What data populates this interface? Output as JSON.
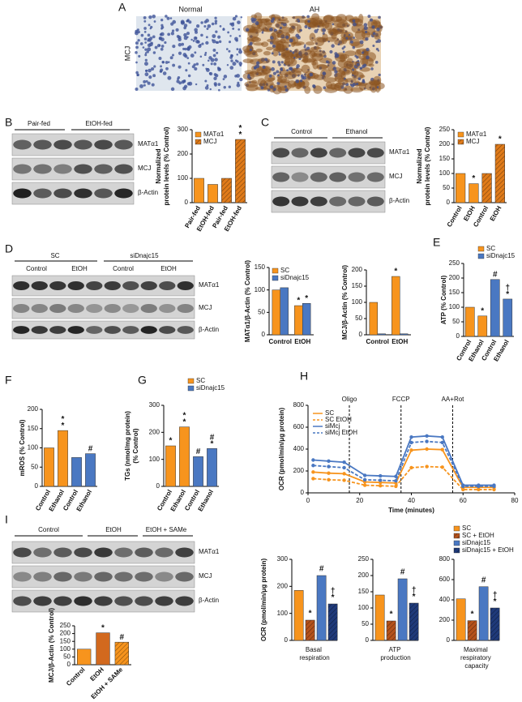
{
  "figure": {
    "panel_labels": [
      "A",
      "B",
      "C",
      "D",
      "E",
      "F",
      "G",
      "H",
      "I"
    ],
    "A": {
      "columns": [
        "Normal",
        "AH"
      ],
      "row": "MCJ"
    },
    "B": {
      "groups": [
        "Pair-fed",
        "EtOH-fed"
      ],
      "rows": [
        "MATα1",
        "MCJ",
        "β-Actin"
      ]
    },
    "C": {
      "groups": [
        "Control",
        "Ethanol"
      ],
      "rows": [
        "MATα1",
        "MCJ",
        "β-Actin"
      ]
    },
    "D": {
      "groups": [
        "SC",
        "siDnajc15"
      ],
      "lanes": [
        "Control",
        "EtOH",
        "Control",
        "EtOH"
      ],
      "rows": [
        "MATα1",
        "MCJ",
        "β-Actin"
      ]
    },
    "I": {
      "groups": [
        "Control",
        "EtOH",
        "EtOH + SAMe"
      ],
      "rows": [
        "MATα1",
        "MCJ",
        "β-Actin"
      ]
    }
  },
  "chart_data": [
    {
      "type": "bar",
      "ylabel": [
        "Normalized",
        "protein levels (% Control)"
      ],
      "categories": [
        "Pair-fed",
        "EtOH-fed",
        "Pair-fed",
        "EtOH-fed"
      ],
      "ylim": [
        0,
        300
      ],
      "yticks": [
        0,
        100,
        200,
        300
      ],
      "series": [
        {
          "name": "MATα1",
          "color": "#f7941d",
          "hatch": false,
          "values": [
            100,
            75,
            null,
            null
          ]
        },
        {
          "name": "MCJ",
          "color": "#e07b1a",
          "hatch": true,
          "values": [
            null,
            null,
            100,
            260
          ],
          "sig": [
            null,
            null,
            null,
            "**"
          ]
        }
      ]
    },
    {
      "type": "bar",
      "ylabel": [
        "Normalized",
        "protein levels (% Control)"
      ],
      "categories": [
        "Control",
        "EtOH",
        "Control",
        "EtOH"
      ],
      "ylim": [
        0,
        250
      ],
      "yticks": [
        0,
        50,
        100,
        150,
        200,
        250
      ],
      "series": [
        {
          "name": "MATα1",
          "color": "#f7941d",
          "hatch": false,
          "values": [
            100,
            65,
            null,
            null
          ],
          "sig": [
            null,
            "*",
            null,
            null
          ]
        },
        {
          "name": "MCJ",
          "color": "#e07b1a",
          "hatch": true,
          "values": [
            null,
            null,
            100,
            200
          ],
          "sig": [
            null,
            null,
            null,
            "*"
          ]
        }
      ]
    },
    {
      "type": "bar",
      "ylabel": [
        "MATα1/β-Actin (% Control)"
      ],
      "categories": [
        "Control",
        "EtOH"
      ],
      "ylim": [
        0,
        150
      ],
      "yticks": [
        0,
        50,
        100,
        150
      ],
      "series": [
        {
          "name": "SC",
          "color": "#f7941d",
          "values": [
            100,
            65
          ],
          "sig": [
            null,
            "*"
          ]
        },
        {
          "name": "siDnajc15",
          "color": "#4a78c2",
          "values": [
            105,
            70
          ],
          "sig": [
            null,
            "*"
          ]
        }
      ]
    },
    {
      "type": "bar",
      "ylabel": [
        "MCJ/β-Actin (% Control)"
      ],
      "categories": [
        "Control",
        "EtOH"
      ],
      "ylim": [
        0,
        200
      ],
      "yticks": [
        0,
        50,
        100,
        150,
        200
      ],
      "series": [
        {
          "color": "#f7941d",
          "values": [
            100,
            180
          ],
          "sig": [
            null,
            "*"
          ]
        },
        {
          "color": "#4a78c2",
          "values": [
            3,
            3
          ]
        }
      ]
    },
    {
      "type": "bar",
      "ylabel": [
        "ATP (% Control)"
      ],
      "categories": [
        "Control",
        "Ethanol",
        "Control",
        "Ethanol"
      ],
      "ylim": [
        0,
        250
      ],
      "yticks": [
        0,
        50,
        100,
        150,
        200,
        250
      ],
      "series": [
        {
          "name": "SC",
          "color": "#f7941d",
          "values": [
            100,
            70,
            null,
            null
          ],
          "sig": [
            null,
            "*",
            null,
            null
          ]
        },
        {
          "name": "siDnajc15",
          "color": "#4a78c2",
          "values": [
            null,
            null,
            195,
            128
          ],
          "sig": [
            null,
            null,
            "#",
            "†*"
          ]
        }
      ]
    },
    {
      "type": "bar",
      "ylabel": [
        "mROS (% Control)"
      ],
      "categories": [
        "Control",
        "Ethanol",
        "Control",
        "Ethanol"
      ],
      "ylim": [
        0,
        200
      ],
      "yticks": [
        0,
        50,
        100,
        150,
        200
      ],
      "series": [
        {
          "color": "#f7941d",
          "values": [
            100,
            145,
            null,
            null
          ],
          "sig": [
            null,
            "**",
            null,
            null
          ]
        },
        {
          "color": "#4a78c2",
          "values": [
            null,
            null,
            75,
            85
          ],
          "sig": [
            null,
            null,
            null,
            "#"
          ]
        }
      ]
    },
    {
      "type": "bar",
      "ylabel": [
        "TGs (nmol/mg protein)",
        "(% Control)"
      ],
      "categories": [
        "Control",
        "Ethanol",
        "Control",
        "Ethanol"
      ],
      "ylim": [
        0,
        300
      ],
      "yticks": [
        0,
        100,
        200,
        300
      ],
      "series": [
        {
          "name": "SC",
          "color": "#f7941d",
          "values": [
            150,
            220,
            null,
            null
          ],
          "sig": [
            "*",
            "**",
            null,
            null
          ]
        },
        {
          "name": "siDnajc15",
          "color": "#4a78c2",
          "values": [
            null,
            null,
            110,
            140
          ],
          "sig": [
            null,
            null,
            "#",
            "#*"
          ]
        }
      ]
    },
    {
      "type": "line",
      "ylabel": [
        "OCR (pmol/min/μg protein)"
      ],
      "xlabel": "Time (minutes)",
      "x": [
        2,
        8,
        14,
        22,
        28,
        34,
        40,
        46,
        52,
        60,
        66,
        72
      ],
      "xlim": [
        0,
        80
      ],
      "xticks": [
        0,
        20,
        40,
        60,
        80
      ],
      "ylim": [
        0,
        800
      ],
      "yticks": [
        0,
        200,
        400,
        600,
        800
      ],
      "events": [
        {
          "label": "Oligo",
          "x": 16
        },
        {
          "label": "FCCP",
          "x": 36
        },
        {
          "label": "AA+Rot",
          "x": 56
        }
      ],
      "series": [
        {
          "name": "SC",
          "color": "#f7941d",
          "dash": false,
          "values": [
            190,
            180,
            175,
            100,
            95,
            90,
            390,
            400,
            395,
            50,
            50,
            50
          ]
        },
        {
          "name": "SC EtOH",
          "color": "#f7941d",
          "dash": true,
          "values": [
            130,
            120,
            115,
            70,
            65,
            60,
            230,
            240,
            235,
            30,
            30,
            30
          ]
        },
        {
          "name": "siMcj",
          "color": "#4a78c2",
          "dash": false,
          "values": [
            300,
            290,
            280,
            160,
            155,
            150,
            510,
            520,
            510,
            70,
            70,
            70
          ]
        },
        {
          "name": "siMcj EtOH",
          "color": "#4a78c2",
          "dash": true,
          "values": [
            250,
            240,
            230,
            120,
            115,
            110,
            460,
            470,
            460,
            60,
            60,
            60
          ]
        }
      ]
    },
    {
      "type": "bar",
      "ylabel": [
        "MCJ/β-Actin (% Control)"
      ],
      "categories": [
        "Control",
        "EtOH",
        "EtOH + SAMe"
      ],
      "ylim": [
        0,
        250
      ],
      "yticks": [
        0,
        50,
        100,
        150,
        200,
        250
      ],
      "series": [
        {
          "colors": [
            "#f7941d",
            "#d2691e",
            "#f7941d"
          ],
          "hatch": [
            false,
            false,
            true
          ],
          "values": [
            100,
            205,
            145
          ],
          "sig": [
            null,
            "*",
            "#"
          ]
        }
      ]
    },
    {
      "type": "bar-panels",
      "ylabel": [
        "OCR (pmol/min/μg protein)"
      ],
      "categories": [
        "Basal respiration",
        "ATP production",
        "Maximal respiratory capacity"
      ],
      "ylims": [
        [
          0,
          300
        ],
        [
          0,
          250
        ],
        [
          0,
          800
        ]
      ],
      "yticks": [
        [
          0,
          100,
          200,
          300
        ],
        [
          0,
          50,
          100,
          150,
          200,
          250
        ],
        [
          0,
          200,
          400,
          600,
          800
        ]
      ],
      "series": [
        {
          "name": "SC",
          "color": "#f7941d",
          "hatch": false,
          "values": [
            185,
            140,
            410
          ]
        },
        {
          "name": "SC + EtOH",
          "color": "#b5521b",
          "hatch": true,
          "values": [
            75,
            60,
            195
          ],
          "sig": [
            "*",
            "*",
            "*"
          ]
        },
        {
          "name": "siDnajc15",
          "color": "#4a78c2",
          "hatch": false,
          "values": [
            240,
            190,
            530
          ],
          "sig": [
            "#",
            "#",
            "#"
          ]
        },
        {
          "name": "siDnajc15 + EtOH",
          "color": "#1f3a7a",
          "hatch": true,
          "values": [
            135,
            115,
            320
          ],
          "sig": [
            "†*",
            "†*",
            "†*"
          ]
        }
      ]
    }
  ]
}
